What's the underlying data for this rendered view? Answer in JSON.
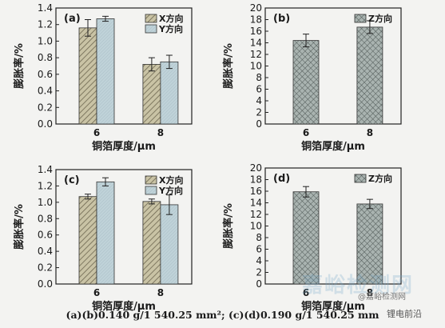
{
  "caption": "(a)(b)0.140 g/1 540.25 mm²; (c)(d)0.190 g/1 540.25 mm",
  "watermark": {
    "text": "嘉峪检测网",
    "sub": "@嘉峪检测网",
    "logo": "锂电前沿"
  },
  "colors": {
    "x_fill": "#c2bc9e",
    "y_fill": "#bccfd6",
    "z_fill": "#9aa6a4",
    "frame": "#222222"
  },
  "chart_data": [
    {
      "panel": "(a)",
      "type": "bar",
      "categories": [
        "6",
        "8"
      ],
      "series": [
        {
          "name": "X方向",
          "values": [
            1.16,
            0.72
          ],
          "errors": [
            0.1,
            0.08
          ],
          "pattern": "diag"
        },
        {
          "name": "Y方向",
          "values": [
            1.27,
            0.75
          ],
          "errors": [
            0.03,
            0.08
          ],
          "pattern": "light"
        }
      ],
      "ylim": [
        0,
        1.4
      ],
      "yticks": [
        0,
        0.2,
        0.4,
        0.6,
        0.8,
        1.0,
        1.2,
        1.4
      ],
      "ytick_labels": [
        "0.0",
        "0.2",
        "0.4",
        "0.6",
        "0.8",
        "1.0",
        "1.2",
        "1.4"
      ],
      "ylabel": "膨胀率/%",
      "xlabel": "铜箔厚度/μm",
      "legend_placement": "top-right"
    },
    {
      "panel": "(b)",
      "type": "bar",
      "categories": [
        "6",
        "8"
      ],
      "series": [
        {
          "name": "Z方向",
          "values": [
            14.4,
            16.7
          ],
          "errors": [
            1.1,
            1.1
          ],
          "pattern": "cross"
        }
      ],
      "ylim": [
        0,
        20
      ],
      "yticks": [
        0,
        2,
        4,
        6,
        8,
        10,
        12,
        14,
        16,
        18,
        20
      ],
      "ytick_labels": [
        "0",
        "2",
        "4",
        "6",
        "8",
        "10",
        "12",
        "14",
        "16",
        "18",
        "20"
      ],
      "ylabel": "膨胀率/%",
      "xlabel": "铜箔厚度/μm",
      "legend_placement": "top-right"
    },
    {
      "panel": "(c)",
      "type": "bar",
      "categories": [
        "6",
        "8"
      ],
      "series": [
        {
          "name": "X方向",
          "values": [
            1.07,
            1.01
          ],
          "errors": [
            0.03,
            0.03
          ],
          "pattern": "diag"
        },
        {
          "name": "Y方向",
          "values": [
            1.25,
            0.97
          ],
          "errors": [
            0.05,
            0.12
          ],
          "pattern": "light"
        }
      ],
      "ylim": [
        0,
        1.4
      ],
      "yticks": [
        0,
        0.2,
        0.4,
        0.6,
        0.8,
        1.0,
        1.2,
        1.4
      ],
      "ytick_labels": [
        "0.0",
        "0.2",
        "0.4",
        "0.6",
        "0.8",
        "1.0",
        "1.2",
        "1.4"
      ],
      "ylabel": "膨胀率/%",
      "xlabel": "铜箔厚度/μm",
      "legend_placement": "top-right"
    },
    {
      "panel": "(d)",
      "type": "bar",
      "categories": [
        "6",
        "8"
      ],
      "series": [
        {
          "name": "Z方向",
          "values": [
            15.9,
            13.8
          ],
          "errors": [
            0.9,
            0.8
          ],
          "pattern": "cross"
        }
      ],
      "ylim": [
        0,
        20
      ],
      "yticks": [
        0,
        2,
        4,
        6,
        8,
        10,
        12,
        14,
        16,
        18,
        20
      ],
      "ytick_labels": [
        "0",
        "2",
        "4",
        "6",
        "8",
        "10",
        "12",
        "14",
        "16",
        "18",
        "20"
      ],
      "ylabel": "膨胀率/%",
      "xlabel": "铜箔厚度/μm",
      "legend_placement": "top-right"
    }
  ]
}
